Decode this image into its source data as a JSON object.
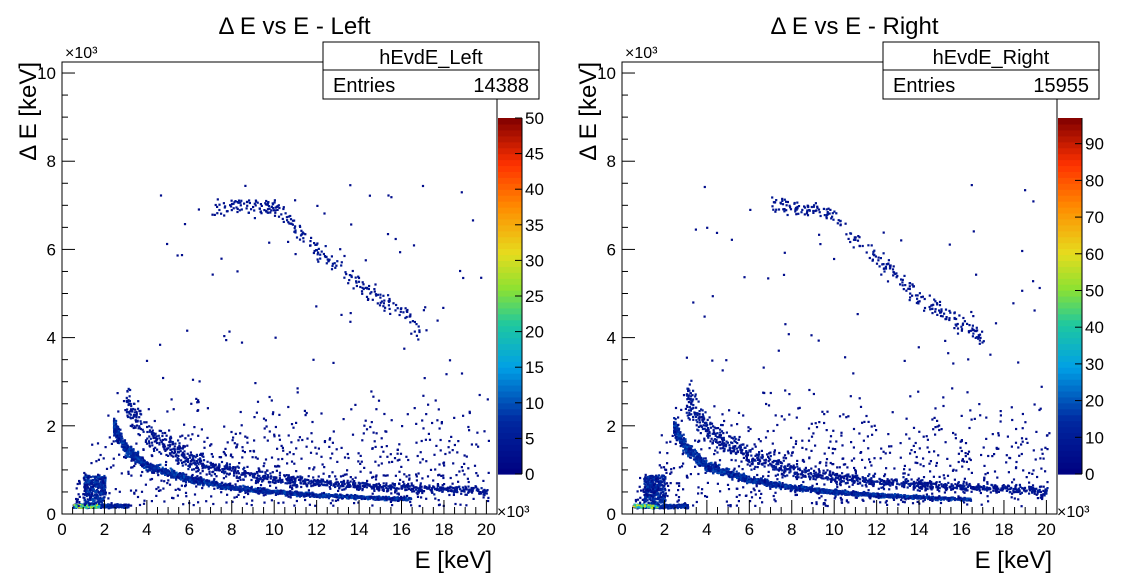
{
  "chart_data": [
    {
      "type": "heatmap",
      "title": "Δ E vs E - Left",
      "xlabel": "E [keV]",
      "ylabel": "Δ E [keV]",
      "x_exponent": "×10³",
      "y_exponent": "×10³",
      "xlim": [
        0,
        20.5
      ],
      "ylim": [
        0,
        10.25
      ],
      "x_ticks": [
        "0",
        "2",
        "4",
        "6",
        "8",
        "10",
        "12",
        "14",
        "16",
        "18",
        "20"
      ],
      "y_ticks": [
        "0",
        "2",
        "4",
        "6",
        "8",
        "10"
      ],
      "stats": {
        "name": "hEvdE_Left",
        "entries_label": "Entries",
        "entries": "14388"
      },
      "z_range": [
        0,
        50
      ],
      "z_ticks": [
        "0",
        "5",
        "10",
        "15",
        "20",
        "25",
        "30",
        "35",
        "40",
        "45",
        "50"
      ],
      "bands": {
        "main": [
          [
            2.4,
            2.0
          ],
          [
            3,
            1.5
          ],
          [
            4,
            1.1
          ],
          [
            6,
            0.8
          ],
          [
            8,
            0.62
          ],
          [
            10,
            0.52
          ],
          [
            12,
            0.45
          ],
          [
            14,
            0.4
          ],
          [
            16,
            0.36
          ]
        ],
        "upper": [
          [
            3,
            2.6
          ],
          [
            4,
            1.8
          ],
          [
            6,
            1.25
          ],
          [
            8,
            0.98
          ],
          [
            10,
            0.82
          ],
          [
            14,
            0.66
          ],
          [
            20,
            0.55
          ]
        ],
        "low": [
          [
            0.5,
            0.2
          ],
          [
            3,
            0.2
          ]
        ],
        "heavy": [
          [
            7,
            6.8
          ],
          [
            8,
            7.0
          ],
          [
            10,
            7.0
          ],
          [
            11,
            6.5
          ],
          [
            12,
            6.0
          ],
          [
            14,
            5.2
          ],
          [
            16,
            4.6
          ],
          [
            17,
            4.0
          ]
        ]
      }
    },
    {
      "type": "heatmap",
      "title": "Δ E vs E - Right",
      "xlabel": "E [keV]",
      "ylabel": "Δ E [keV]",
      "x_exponent": "×10³",
      "y_exponent": "×10³",
      "xlim": [
        0,
        20.5
      ],
      "ylim": [
        0,
        10.25
      ],
      "x_ticks": [
        "0",
        "2",
        "4",
        "6",
        "8",
        "10",
        "12",
        "14",
        "16",
        "18",
        "20"
      ],
      "y_ticks": [
        "0",
        "2",
        "4",
        "6",
        "8",
        "10"
      ],
      "stats": {
        "name": "hEvdE_Right",
        "entries_label": "Entries",
        "entries": "15955"
      },
      "z_range": [
        0,
        97
      ],
      "z_ticks": [
        "0",
        "10",
        "20",
        "30",
        "40",
        "50",
        "60",
        "70",
        "80",
        "90"
      ],
      "bands": {
        "main": [
          [
            2.4,
            2.0
          ],
          [
            3,
            1.5
          ],
          [
            4,
            1.1
          ],
          [
            6,
            0.8
          ],
          [
            8,
            0.62
          ],
          [
            10,
            0.52
          ],
          [
            12,
            0.45
          ],
          [
            14,
            0.4
          ],
          [
            16,
            0.36
          ]
        ],
        "upper": [
          [
            3,
            2.7
          ],
          [
            4,
            1.9
          ],
          [
            6,
            1.3
          ],
          [
            8,
            1.0
          ],
          [
            10,
            0.85
          ],
          [
            14,
            0.68
          ],
          [
            20,
            0.55
          ]
        ],
        "low": [
          [
            0.5,
            0.2
          ],
          [
            3,
            0.2
          ]
        ],
        "heavy": [
          [
            7,
            7.0
          ],
          [
            8,
            7.0
          ],
          [
            10,
            6.8
          ],
          [
            11,
            6.2
          ],
          [
            12,
            5.8
          ],
          [
            14,
            4.9
          ],
          [
            16,
            4.3
          ],
          [
            17,
            4.0
          ]
        ]
      }
    }
  ]
}
